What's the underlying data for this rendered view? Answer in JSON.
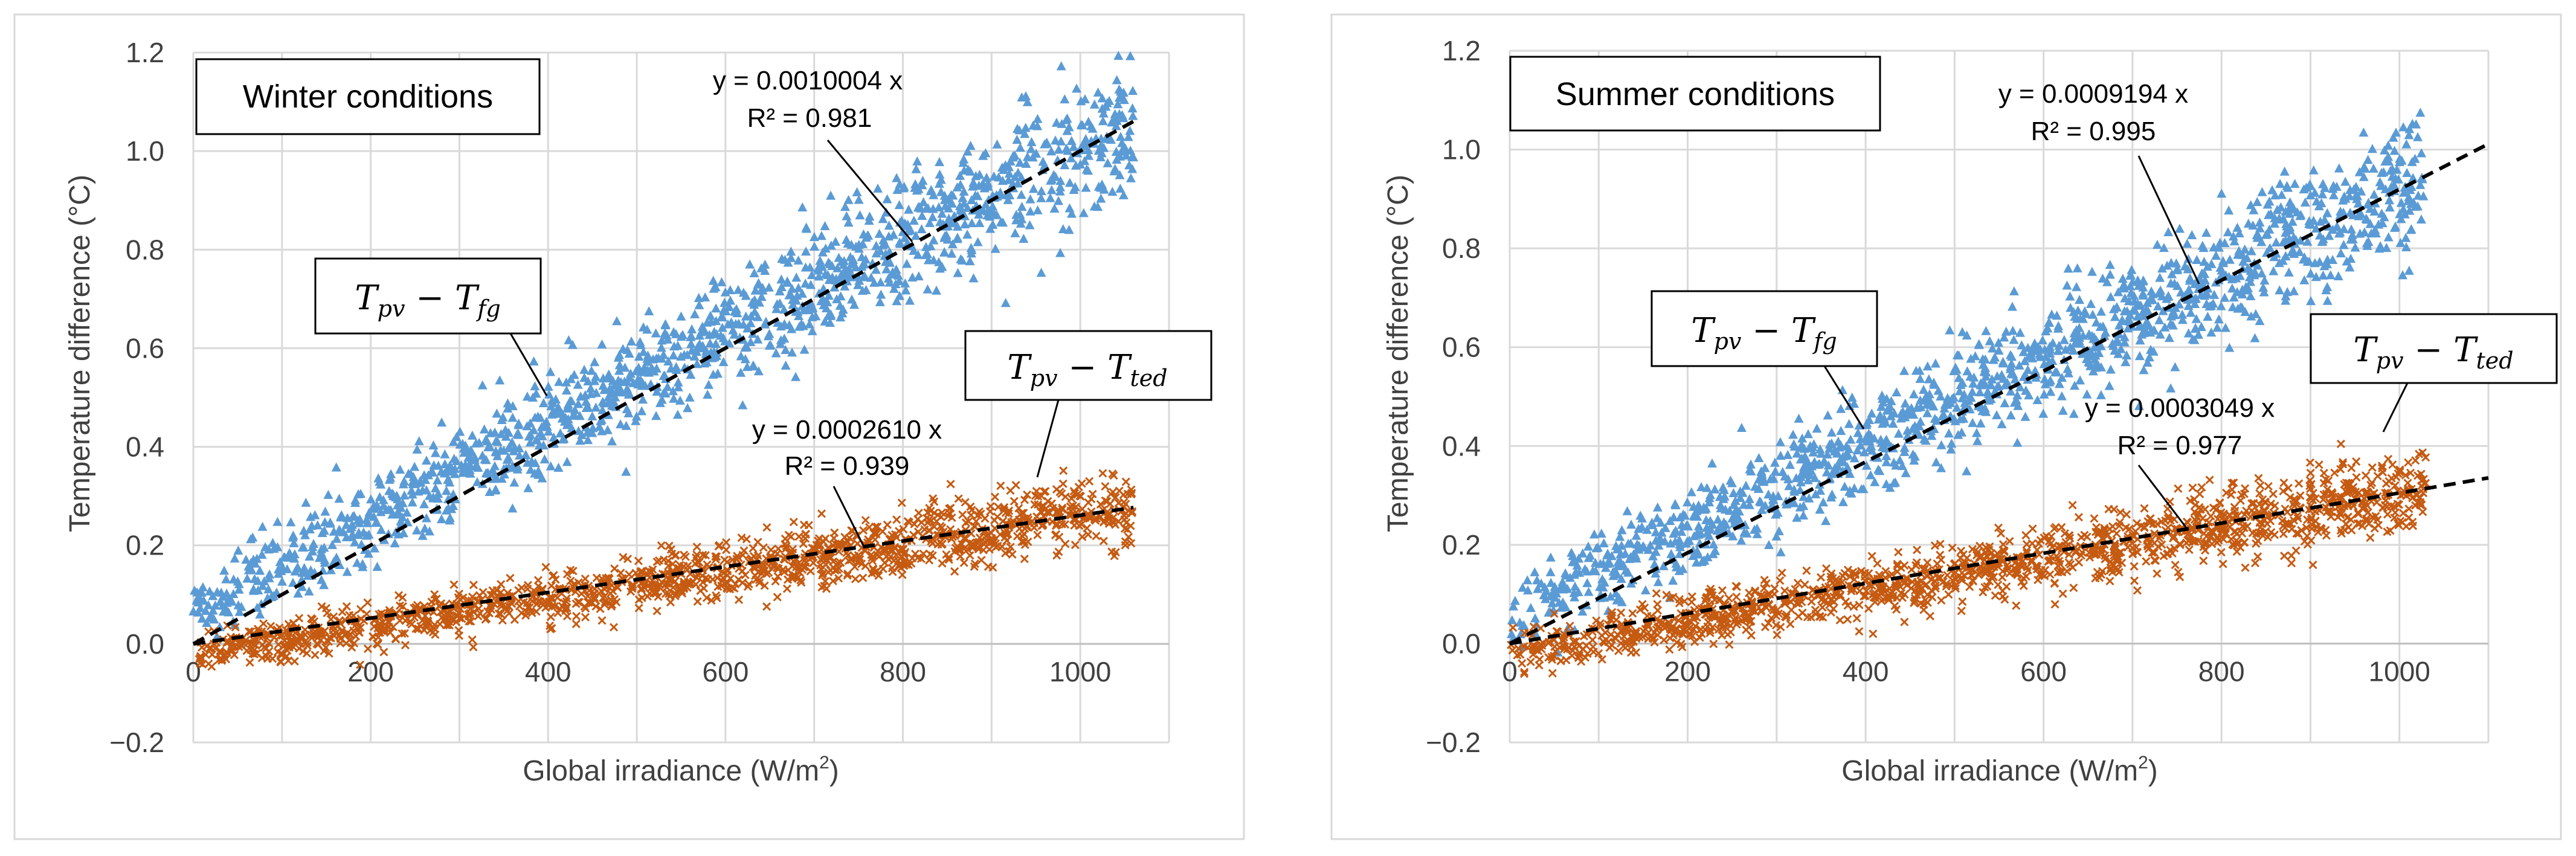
{
  "chart_data": [
    {
      "type": "scatter",
      "title": "Winter conditions",
      "xlabel": "Global irradiance (W/m",
      "xlabel_sup": "2",
      "xlabel_end": ")",
      "ylabel": "Temperature difference (°C)",
      "xlim": [
        0,
        1100
      ],
      "ylim": [
        -0.2,
        1.2
      ],
      "x_ticks": [
        0,
        200,
        400,
        600,
        800,
        1000
      ],
      "x_tick_labels": [
        "0",
        "200",
        "400",
        "600",
        "800",
        "1000"
      ],
      "y_ticks": [
        -0.2,
        0.0,
        0.2,
        0.4,
        0.6,
        0.8,
        1.0,
        1.2
      ],
      "y_tick_labels": [
        "−0.2",
        "0.0",
        "0.2",
        "0.4",
        "0.6",
        "0.8",
        "1.0",
        "1.2"
      ],
      "series": [
        {
          "name": "T_pv − T_fg",
          "marker": "triangle",
          "color": "#5B9BD5",
          "slope": 0.0010004,
          "x_range": [
            0,
            1060
          ],
          "intercept_visual": 0.07,
          "spread": 0.06,
          "trendline": {
            "slope": 0.0010004,
            "x_end": 1060,
            "equation": "y = 0.0010004 x",
            "r2": "R² = 0.981"
          }
        },
        {
          "name": "T_pv − T_ted",
          "marker": "x",
          "color": "#C55A11",
          "slope": 0.000261,
          "x_range": [
            0,
            1060
          ],
          "intercept_visual": -0.02,
          "spread": 0.03,
          "trendline": {
            "slope": 0.000261,
            "x_end": 1060,
            "equation": "y = 0.0002610 x",
            "r2": "R² = 0.939"
          }
        }
      ],
      "annotations": {
        "series1_label": {
          "main1": "T",
          "sub1": "pv",
          "minus": " − ",
          "main2": "T",
          "sub2": "fg"
        },
        "series2_label": {
          "main1": "T",
          "sub1": "pv",
          "minus": " − ",
          "main2": "T",
          "sub2": "ted"
        }
      }
    },
    {
      "type": "scatter",
      "title": "Summer conditions",
      "xlabel": "Global irradiance (W/m",
      "xlabel_sup": "2",
      "xlabel_end": ")",
      "ylabel": "Temperature difference (°C)",
      "xlim": [
        0,
        1100
      ],
      "ylim": [
        -0.2,
        1.2
      ],
      "x_ticks": [
        0,
        200,
        400,
        600,
        800,
        1000
      ],
      "x_tick_labels": [
        "0",
        "200",
        "400",
        "600",
        "800",
        "1000"
      ],
      "y_ticks": [
        -0.2,
        0.0,
        0.2,
        0.4,
        0.6,
        0.8,
        1.0,
        1.2
      ],
      "y_tick_labels": [
        "−0.2",
        "0.0",
        "0.2",
        "0.4",
        "0.6",
        "0.8",
        "1.0",
        "1.2"
      ],
      "series": [
        {
          "name": "T_pv − T_fg",
          "marker": "triangle",
          "color": "#5B9BD5",
          "slope": 0.0009194,
          "x_range": [
            0,
            1030
          ],
          "intercept_visual": 0.06,
          "spread": 0.06,
          "trendline": {
            "slope": 0.0009194,
            "x_end": 1100,
            "equation": "y = 0.0009194 x",
            "r2": "R² = 0.995"
          }
        },
        {
          "name": "T_pv − T_ted",
          "marker": "x",
          "color": "#C55A11",
          "slope": 0.0003049,
          "x_range": [
            0,
            1030
          ],
          "intercept_visual": -0.02,
          "spread": 0.035,
          "trendline": {
            "slope": 0.0003049,
            "x_end": 1100,
            "equation": "y = 0.0003049 x",
            "r2": "R² = 0.977"
          }
        }
      ],
      "annotations": {
        "series1_label": {
          "main1": "T",
          "sub1": "pv",
          "minus": " − ",
          "main2": "T",
          "sub2": "fg"
        },
        "series2_label": {
          "main1": "T",
          "sub1": "pv",
          "minus": " − ",
          "main2": "T",
          "sub2": "ted"
        }
      }
    }
  ]
}
